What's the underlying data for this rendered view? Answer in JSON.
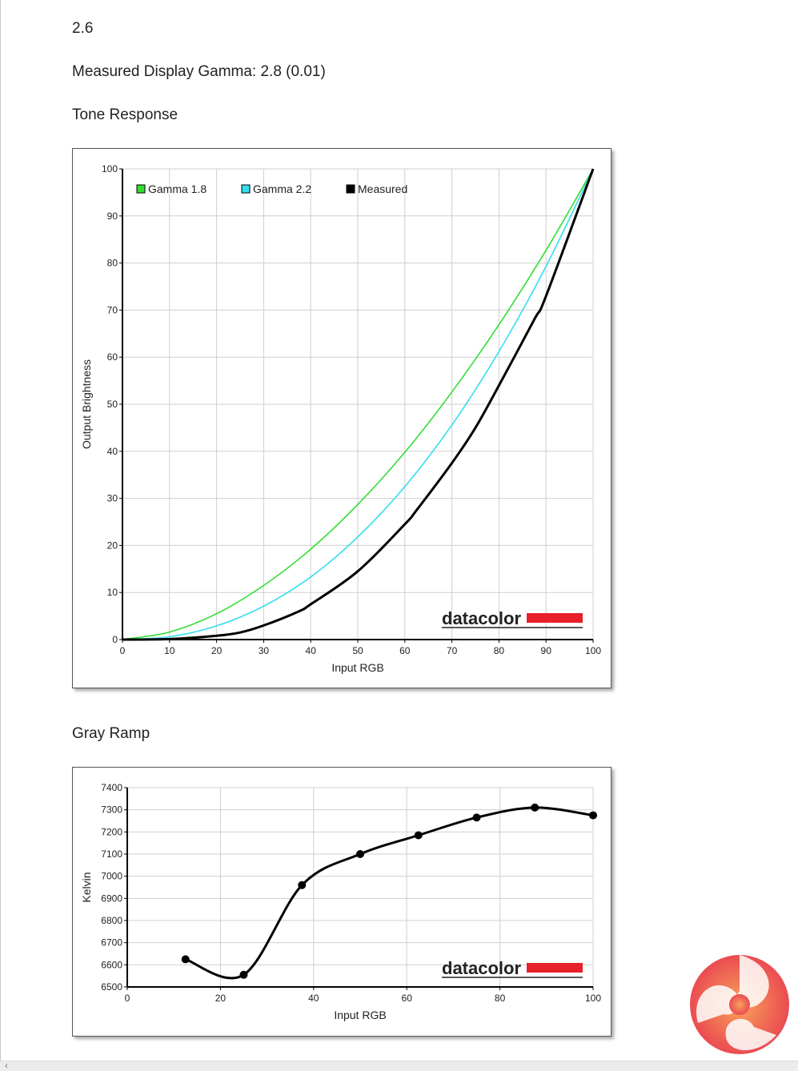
{
  "page": {
    "gamma_value": "2.6",
    "measured_gamma": "Measured Display Gamma: 2.8 (0.01)",
    "tone_heading": "Tone Response",
    "gray_heading": "Gray Ramp",
    "logo_text": "datacolor",
    "brand_color": "#e8202a"
  },
  "chart_data": [
    {
      "type": "line",
      "xlabel": "Input RGB",
      "ylabel": "Output Brightness",
      "xlim": [
        0,
        100
      ],
      "ylim": [
        0,
        100
      ],
      "xticks": [
        0,
        10,
        20,
        30,
        40,
        50,
        60,
        70,
        80,
        90,
        100
      ],
      "yticks": [
        0,
        10,
        20,
        30,
        40,
        50,
        60,
        70,
        80,
        90,
        100
      ],
      "grid": true,
      "legend": "top-left",
      "series": [
        {
          "name": "Gamma 1.8",
          "color": "#33dd33",
          "x": [
            0,
            10,
            20,
            30,
            40,
            50,
            60,
            70,
            80,
            90,
            100
          ],
          "values": [
            0,
            1.6,
            5.5,
            11.5,
            19.2,
            28.7,
            39.8,
            52.6,
            66.9,
            82.7,
            100
          ]
        },
        {
          "name": "Gamma 2.2",
          "color": "#33ddee",
          "x": [
            0,
            10,
            20,
            30,
            40,
            50,
            60,
            70,
            80,
            90,
            100
          ],
          "values": [
            0,
            0.6,
            2.9,
            7.1,
            13.3,
            21.8,
            32.5,
            45.6,
            61.2,
            79.3,
            100
          ]
        },
        {
          "name": "Measured",
          "color": "#000000",
          "x": [
            0,
            10,
            20,
            25,
            30,
            37.5,
            40,
            50,
            60,
            62.5,
            70,
            75,
            80,
            87.5,
            90,
            100
          ],
          "values": [
            0,
            0.1,
            0.8,
            1.5,
            3,
            6,
            7.5,
            14.5,
            24.5,
            27.5,
            37.5,
            45,
            54,
            68,
            73,
            100
          ]
        }
      ]
    },
    {
      "type": "line",
      "xlabel": "Input RGB",
      "ylabel": "Kelvin",
      "xlim": [
        0,
        100
      ],
      "ylim": [
        6500,
        7400
      ],
      "xticks": [
        0,
        20,
        40,
        60,
        80,
        100
      ],
      "yticks": [
        6500,
        6600,
        6700,
        6800,
        6900,
        7000,
        7100,
        7200,
        7300,
        7400
      ],
      "grid": true,
      "series": [
        {
          "color": "#000000",
          "x": [
            12.5,
            25,
            37.5,
            50,
            62.5,
            75,
            87.5,
            100
          ],
          "values": [
            6625,
            6555,
            6960,
            7100,
            7185,
            7265,
            7310,
            7275
          ]
        }
      ]
    }
  ]
}
